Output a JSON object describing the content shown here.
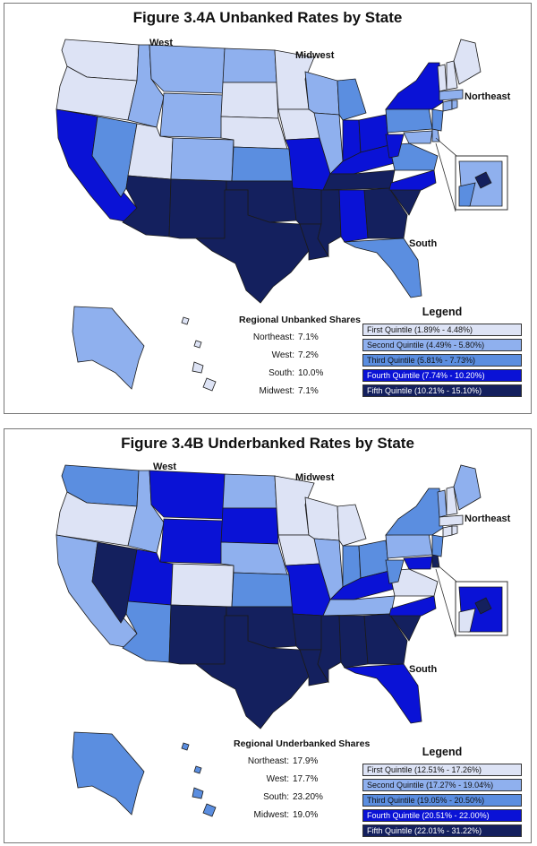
{
  "colors": {
    "q1": "#dde3f5",
    "q2": "#8fb0ee",
    "q3": "#5b8ee0",
    "q4": "#0a12d6",
    "q5": "#14205e",
    "border": "#1a1a1a"
  },
  "figA": {
    "title": "Figure 3.4A Unbanked Rates by State",
    "regions": {
      "west": "West",
      "midwest": "Midwest",
      "northeast": "Northeast",
      "south": "South"
    },
    "shares_title": "Regional Unbanked Shares",
    "shares": [
      {
        "region": "Northeast:",
        "value": "7.1%"
      },
      {
        "region": "West:",
        "value": "7.2%"
      },
      {
        "region": "South:",
        "value": "10.0%"
      },
      {
        "region": "Midwest:",
        "value": "7.1%"
      }
    ],
    "legend_title": "Legend",
    "legend": [
      {
        "label": "First Quintile (1.89% - 4.48%)",
        "color": "#dde3f5"
      },
      {
        "label": "Second Quintile (4.49% - 5.80%)",
        "color": "#8fb0ee"
      },
      {
        "label": "Third Quintile (5.81% - 7.73%)",
        "color": "#5b8ee0"
      },
      {
        "label": "Fourth Quintile (7.74% - 10.20%)",
        "color": "#0a12d6"
      },
      {
        "label": "Fifth Quintile (10.21% - 15.10%)",
        "color": "#14205e"
      }
    ],
    "state_quintiles": {
      "WA": 1,
      "OR": 1,
      "CA": 4,
      "NV": 3,
      "ID": 2,
      "MT": 2,
      "WY": 2,
      "UT": 1,
      "CO": 2,
      "AZ": 5,
      "NM": 5,
      "ND": 2,
      "SD": 1,
      "NE": 1,
      "KS": 3,
      "MN": 1,
      "IA": 1,
      "MO": 4,
      "WI": 2,
      "IL": 2,
      "MI": 3,
      "IN": 4,
      "OH": 4,
      "TX": 5,
      "OK": 5,
      "AR": 5,
      "LA": 5,
      "MS": 5,
      "AL": 4,
      "GA": 5,
      "FL": 3,
      "SC": 5,
      "NC": 4,
      "TN": 5,
      "KY": 4,
      "WV": 4,
      "VA": 3,
      "MD": 2,
      "DE": 2,
      "DC": 5,
      "PA": 3,
      "NY": 4,
      "NJ": 3,
      "CT": 2,
      "RI": 2,
      "MA": 2,
      "VT": 1,
      "NH": 1,
      "ME": 1,
      "AK": 2,
      "HI": 1
    }
  },
  "figB": {
    "title": "Figure 3.4B Underbanked Rates by State",
    "regions": {
      "west": "West",
      "midwest": "Midwest",
      "northeast": "Northeast",
      "south": "South"
    },
    "shares_title": "Regional Underbanked Shares",
    "shares": [
      {
        "region": "Northeast:",
        "value": "17.9%"
      },
      {
        "region": "West:",
        "value": "17.7%"
      },
      {
        "region": "South:",
        "value": "23.20%"
      },
      {
        "region": "Midwest:",
        "value": "19.0%"
      }
    ],
    "legend_title": "Legend",
    "legend": [
      {
        "label": "First Quintile (12.51% - 17.26%)",
        "color": "#dde3f5"
      },
      {
        "label": "Second Quintile (17.27% - 19.04%)",
        "color": "#8fb0ee"
      },
      {
        "label": "Third Quintile (19.05% - 20.50%)",
        "color": "#5b8ee0"
      },
      {
        "label": "Fourth Quintile (20.51% - 22.00%)",
        "color": "#0a12d6"
      },
      {
        "label": "Fifth Quintile (22.01% - 31.22%)",
        "color": "#14205e"
      }
    ],
    "state_quintiles": {
      "WA": 3,
      "OR": 1,
      "CA": 2,
      "NV": 5,
      "ID": 2,
      "MT": 4,
      "WY": 4,
      "UT": 4,
      "CO": 1,
      "AZ": 3,
      "NM": 5,
      "ND": 2,
      "SD": 4,
      "NE": 2,
      "KS": 3,
      "MN": 1,
      "IA": 1,
      "MO": 4,
      "WI": 1,
      "IL": 2,
      "MI": 1,
      "IN": 3,
      "OH": 3,
      "TX": 5,
      "OK": 5,
      "AR": 5,
      "LA": 5,
      "MS": 5,
      "AL": 5,
      "GA": 5,
      "FL": 4,
      "SC": 5,
      "NC": 4,
      "TN": 2,
      "KY": 4,
      "WV": 3,
      "VA": 1,
      "MD": 4,
      "DE": 5,
      "DC": 5,
      "PA": 2,
      "NY": 3,
      "NJ": 3,
      "CT": 1,
      "RI": 1,
      "MA": 1,
      "VT": 2,
      "NH": 1,
      "ME": 2,
      "AK": 3,
      "HI": 3
    }
  }
}
